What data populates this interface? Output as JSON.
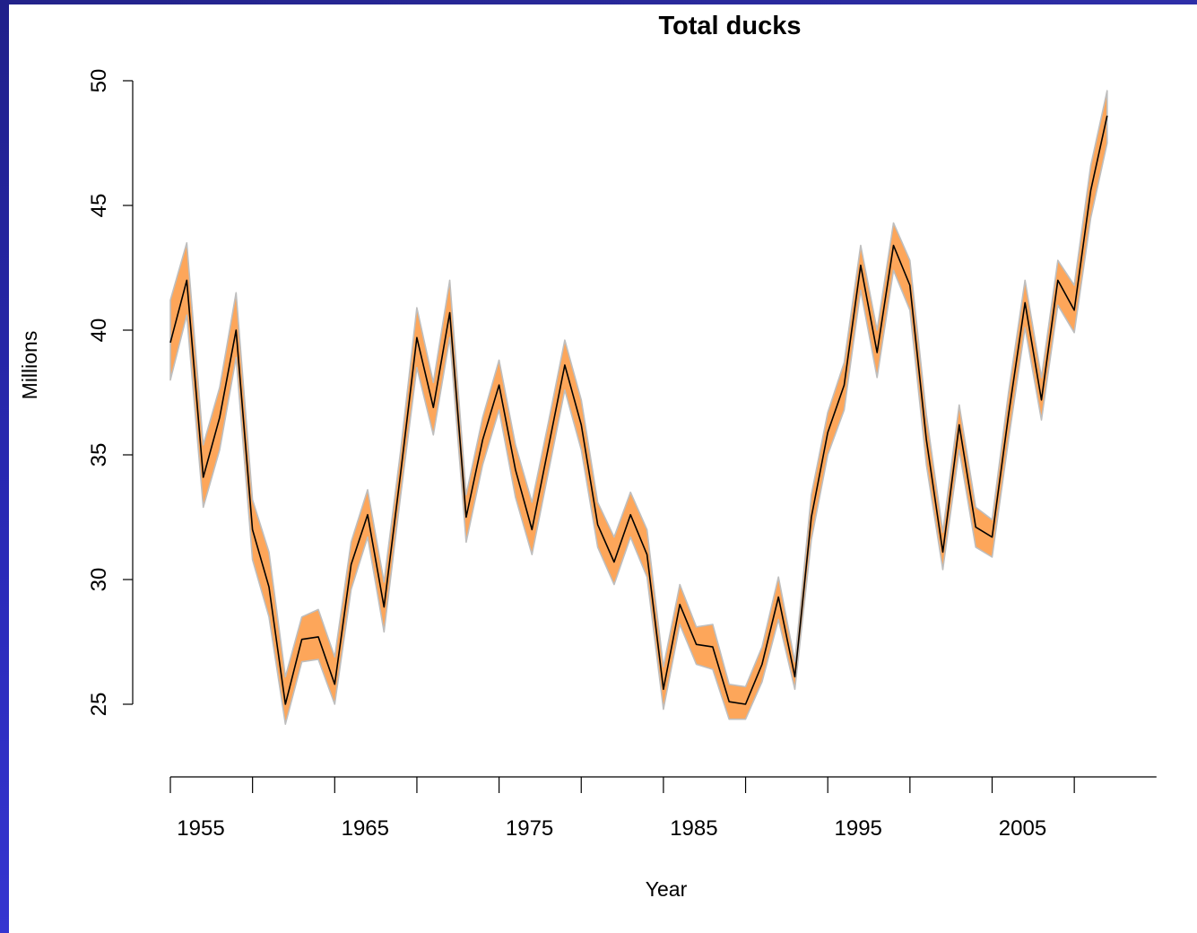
{
  "colors": {
    "band_fill": "#fda65a",
    "band_edge": "#bebebe",
    "line": "#000000",
    "slide_border": "#2a2ab0"
  },
  "chart_data": {
    "type": "line",
    "title": "Total ducks",
    "xlabel": "Year",
    "ylabel": "Millions",
    "xlim": [
      1954,
      2011
    ],
    "ylim": [
      25,
      50
    ],
    "x_axis_extent": [
      1954,
      2014
    ],
    "x_ticks": [
      1954,
      1959,
      1964,
      1969,
      1974,
      1979,
      1984,
      1989,
      1994,
      1999,
      2004,
      2009
    ],
    "x_tick_labels": [
      {
        "year": 1954,
        "label": "1955"
      },
      {
        "year": 1964,
        "label": "1965"
      },
      {
        "year": 1974,
        "label": "1975"
      },
      {
        "year": 1984,
        "label": "1985"
      },
      {
        "year": 1994,
        "label": "1995"
      },
      {
        "year": 2004,
        "label": "2005"
      }
    ],
    "y_ticks": [
      25,
      30,
      35,
      40,
      45,
      50
    ],
    "x": [
      1954,
      1955,
      1956,
      1957,
      1958,
      1959,
      1960,
      1961,
      1962,
      1963,
      1964,
      1965,
      1966,
      1967,
      1968,
      1969,
      1970,
      1971,
      1972,
      1973,
      1974,
      1975,
      1976,
      1977,
      1978,
      1979,
      1980,
      1981,
      1982,
      1983,
      1984,
      1985,
      1986,
      1987,
      1988,
      1989,
      1990,
      1991,
      1992,
      1993,
      1994,
      1995,
      1996,
      1997,
      1998,
      1999,
      2000,
      2001,
      2002,
      2003,
      2004,
      2005,
      2006,
      2007,
      2008,
      2009,
      2010,
      2011
    ],
    "series": [
      {
        "values": [
          39.5,
          42.0,
          34.1,
          36.5,
          40.0,
          32.0,
          29.7,
          25.0,
          27.6,
          27.7,
          25.8,
          30.6,
          32.6,
          28.9,
          34.2,
          39.7,
          36.9,
          40.7,
          32.5,
          35.6,
          37.8,
          34.4,
          32.0,
          35.3,
          38.6,
          36.2,
          32.2,
          30.7,
          32.6,
          31.0,
          25.6,
          29.0,
          27.4,
          27.3,
          25.1,
          25.0,
          26.6,
          29.3,
          26.1,
          32.5,
          35.9,
          37.8,
          42.6,
          39.1,
          43.4,
          41.8,
          35.6,
          31.1,
          36.2,
          32.1,
          31.7,
          36.6,
          41.1,
          37.2,
          42.0,
          40.8,
          45.6,
          48.6
        ],
        "lower": [
          38.0,
          40.6,
          32.9,
          35.2,
          38.9,
          30.8,
          28.5,
          24.2,
          26.7,
          26.8,
          25.0,
          29.6,
          31.7,
          27.9,
          33.3,
          38.5,
          35.8,
          39.7,
          31.5,
          34.6,
          36.8,
          33.3,
          31.0,
          34.3,
          37.6,
          35.2,
          31.3,
          29.8,
          31.7,
          30.1,
          24.8,
          28.2,
          26.6,
          26.4,
          24.4,
          24.4,
          25.9,
          28.4,
          25.6,
          31.6,
          35.0,
          36.8,
          41.6,
          38.1,
          42.4,
          40.8,
          34.6,
          30.4,
          35.2,
          31.3,
          30.9,
          35.6,
          40.1,
          36.4,
          41.0,
          39.9,
          44.5,
          47.5
        ],
        "upper": [
          41.2,
          43.5,
          35.4,
          37.7,
          41.5,
          33.2,
          31.1,
          26.1,
          28.5,
          28.8,
          26.9,
          31.5,
          33.6,
          29.9,
          35.1,
          40.9,
          37.9,
          42.0,
          33.4,
          36.5,
          38.8,
          35.4,
          33.1,
          36.3,
          39.6,
          37.2,
          33.1,
          31.7,
          33.5,
          32.0,
          26.5,
          29.8,
          28.1,
          28.2,
          25.8,
          25.7,
          27.3,
          30.1,
          26.7,
          33.4,
          36.7,
          38.7,
          43.4,
          40.0,
          44.3,
          42.8,
          36.6,
          31.9,
          37.0,
          32.9,
          32.4,
          37.5,
          42.0,
          38.1,
          42.8,
          41.8,
          46.6,
          49.6
        ]
      }
    ],
    "grid": false,
    "legend": "none"
  }
}
